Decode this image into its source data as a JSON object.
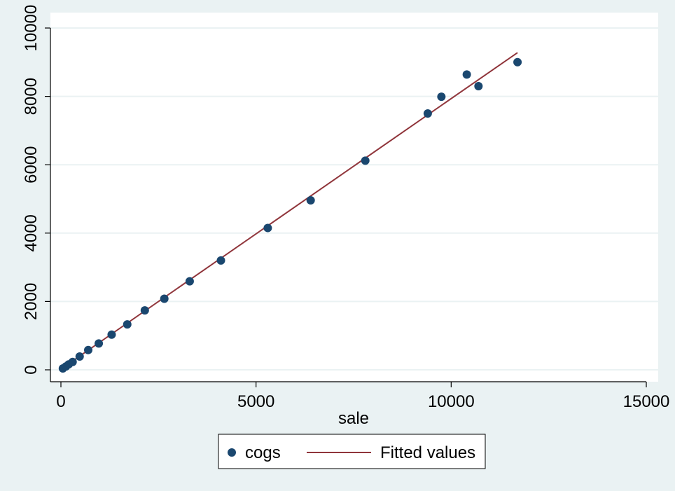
{
  "chart_data": {
    "type": "scatter",
    "title": "",
    "xlabel": "sale",
    "ylabel": "",
    "xlim": [
      0,
      15000
    ],
    "ylim": [
      0,
      10000
    ],
    "xticks": [
      0,
      5000,
      10000,
      15000
    ],
    "yticks": [
      0,
      2000,
      4000,
      6000,
      8000,
      10000
    ],
    "grid": "horizontal",
    "legend_position": "bottom",
    "colors": {
      "background": "#eaf2f3",
      "plot_area": "#ffffff",
      "gridline": "#eaf2f3",
      "points": "#1a476f",
      "fit_line": "#90353b"
    },
    "series": [
      {
        "name": "cogs",
        "kind": "scatter",
        "points": [
          {
            "x": 50,
            "y": 40
          },
          {
            "x": 130,
            "y": 100
          },
          {
            "x": 200,
            "y": 160
          },
          {
            "x": 300,
            "y": 230
          },
          {
            "x": 480,
            "y": 390
          },
          {
            "x": 700,
            "y": 580
          },
          {
            "x": 970,
            "y": 770
          },
          {
            "x": 1300,
            "y": 1030
          },
          {
            "x": 1700,
            "y": 1330
          },
          {
            "x": 2150,
            "y": 1740
          },
          {
            "x": 2650,
            "y": 2080
          },
          {
            "x": 3300,
            "y": 2590
          },
          {
            "x": 4100,
            "y": 3200
          },
          {
            "x": 5300,
            "y": 4150
          },
          {
            "x": 6400,
            "y": 4960
          },
          {
            "x": 7800,
            "y": 6120
          },
          {
            "x": 9400,
            "y": 7500
          },
          {
            "x": 9750,
            "y": 7990
          },
          {
            "x": 10400,
            "y": 8640
          },
          {
            "x": 10700,
            "y": 8300
          },
          {
            "x": 11700,
            "y": 9000
          }
        ]
      },
      {
        "name": "Fitted values",
        "kind": "line",
        "points": [
          {
            "x": 50,
            "y": 60
          },
          {
            "x": 11700,
            "y": 9280
          }
        ]
      }
    ]
  }
}
